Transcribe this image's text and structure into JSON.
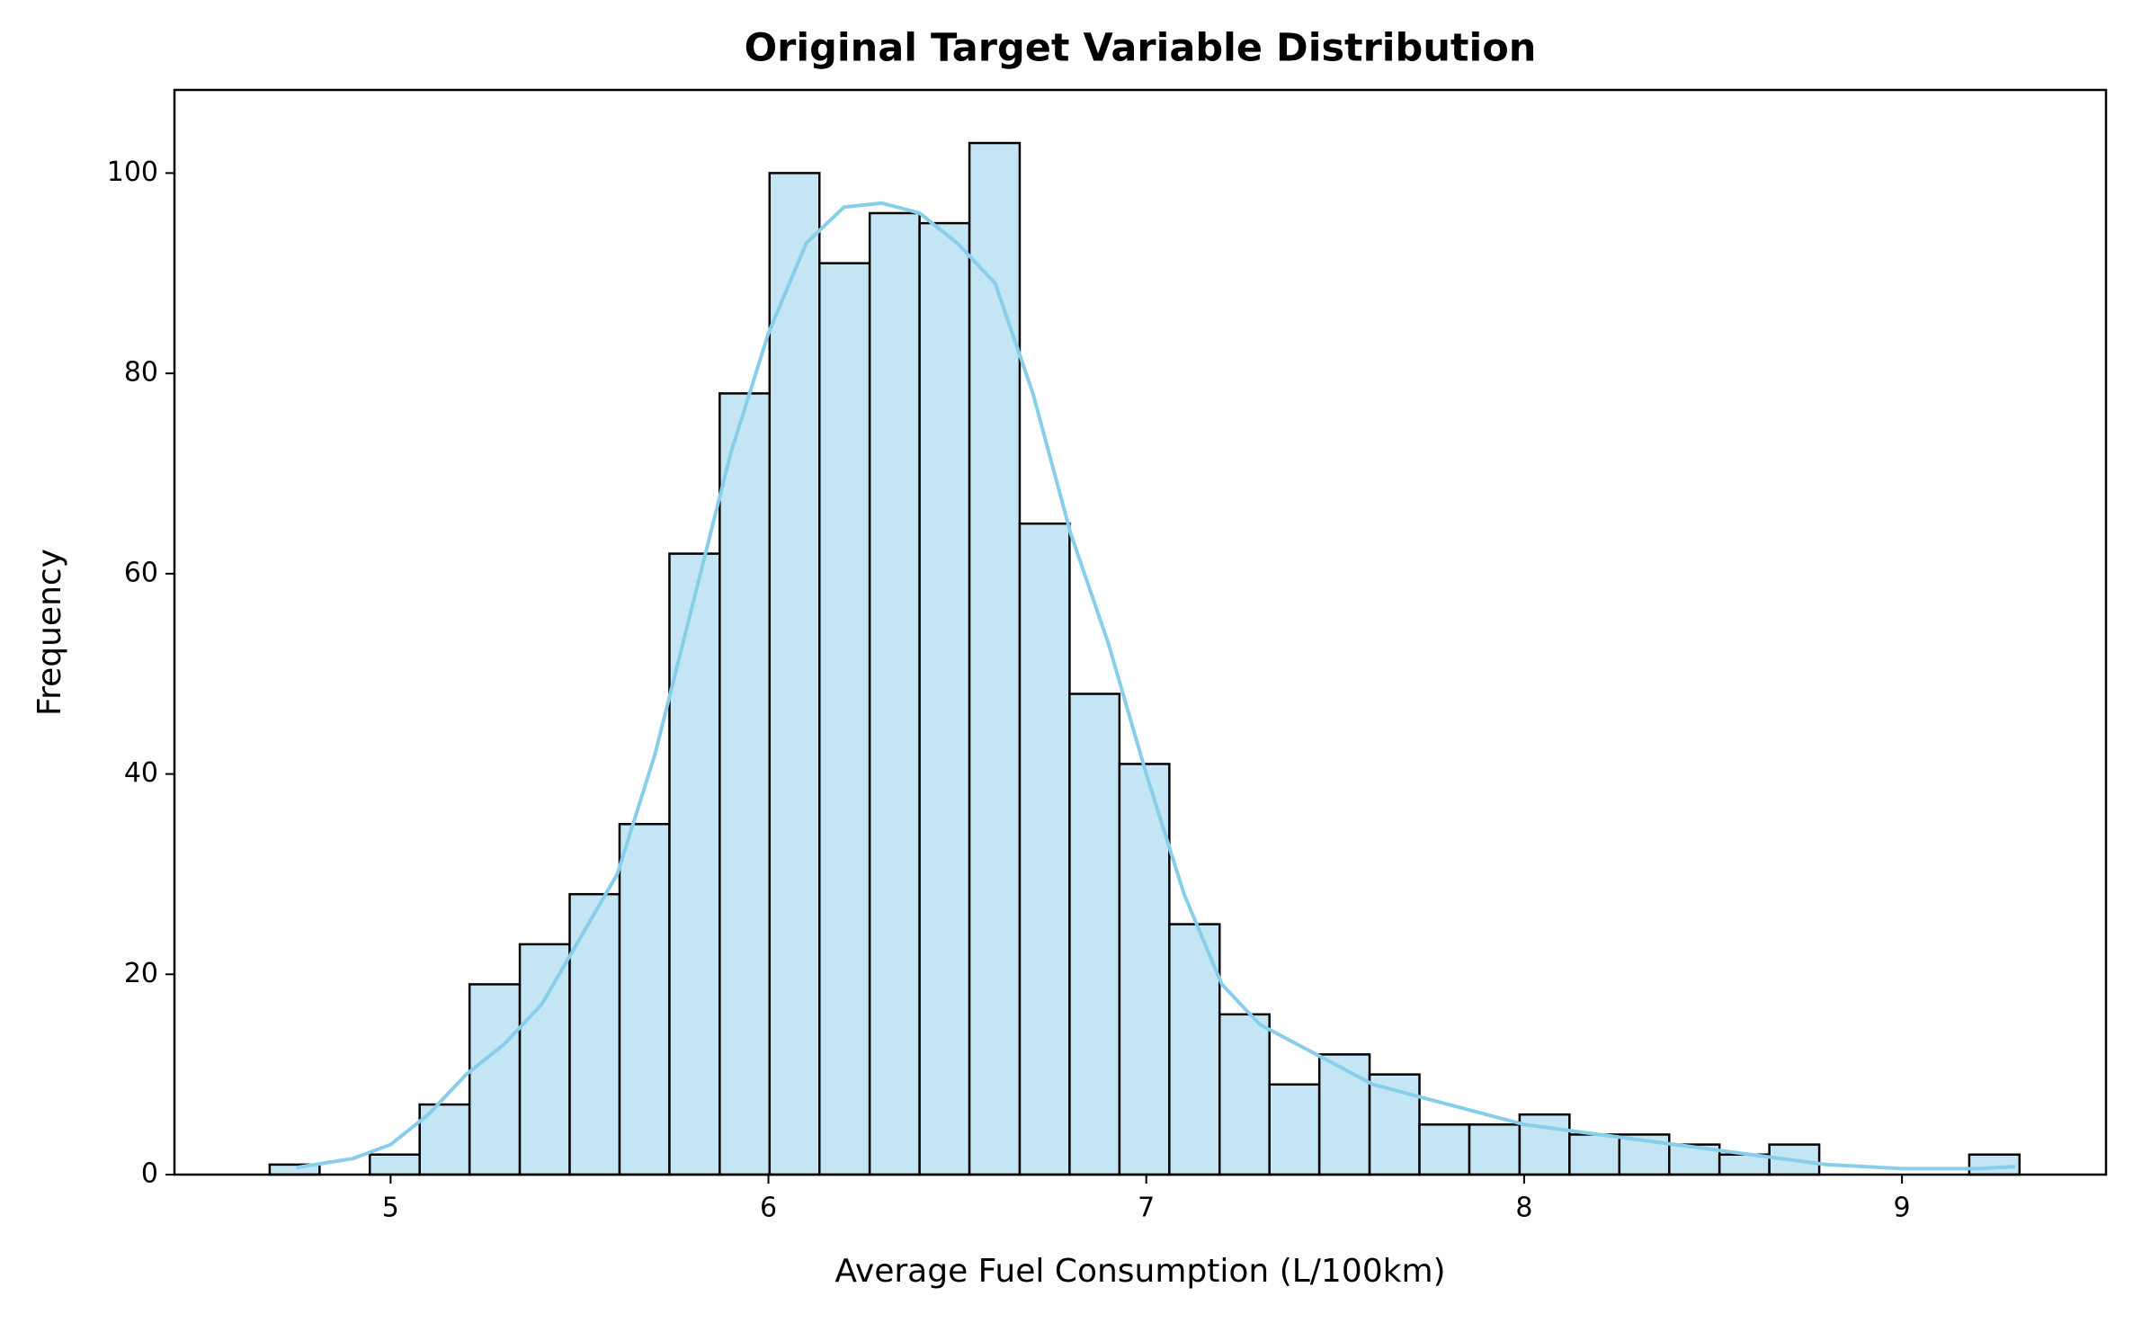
{
  "chart_data": {
    "type": "histogram",
    "title": "Original Target Variable Distribution",
    "x_label": "Average Fuel Consumption (L/100km)",
    "y_label": "Frequency",
    "bins": [
      4.68,
      4.812,
      4.945,
      5.077,
      5.209,
      5.342,
      5.474,
      5.606,
      5.738,
      5.871,
      6.003,
      6.135,
      6.268,
      6.4,
      6.532,
      6.665,
      6.797,
      6.929,
      7.061,
      7.194,
      7.326,
      7.458,
      7.591,
      7.723,
      7.855,
      7.988,
      8.12,
      8.252,
      8.384,
      8.517,
      8.649,
      8.781,
      8.914,
      9.046,
      9.178,
      9.311
    ],
    "counts": [
      1,
      0,
      2,
      7,
      19,
      23,
      28,
      35,
      62,
      78,
      100,
      91,
      96,
      95,
      103,
      65,
      48,
      41,
      25,
      16,
      9,
      12,
      10,
      5,
      5,
      6,
      4,
      4,
      3,
      2,
      3,
      0,
      0,
      0,
      2
    ],
    "color": "#c3e5f4",
    "edgecolor": "#000000",
    "kde": {
      "color": "#87ceeb",
      "x": [
        4.75,
        4.9,
        5.0,
        5.1,
        5.2,
        5.3,
        5.4,
        5.5,
        5.6,
        5.7,
        5.8,
        5.9,
        6.0,
        6.1,
        6.2,
        6.3,
        6.4,
        6.5,
        6.6,
        6.7,
        6.8,
        6.9,
        7.0,
        7.1,
        7.2,
        7.3,
        7.4,
        7.5,
        7.6,
        7.8,
        8.0,
        8.2,
        8.4,
        8.6,
        8.8,
        9.0,
        9.2,
        9.3
      ],
      "y": [
        0.7,
        1.6,
        3,
        6,
        10,
        13,
        17,
        23.5,
        30,
        42,
        57,
        72,
        84,
        93,
        96.6,
        97,
        96,
        93,
        89,
        78,
        64,
        53,
        40,
        28,
        19,
        15,
        13,
        11,
        9,
        7,
        5,
        4,
        3,
        2,
        1,
        0.6,
        0.6,
        0.8
      ]
    },
    "xlim": [
      4.428,
      9.54
    ],
    "ylim": [
      0,
      108.3
    ],
    "xticks": [
      5,
      6,
      7,
      8,
      9
    ],
    "yticks": [
      0,
      20,
      40,
      60,
      80,
      100
    ]
  }
}
